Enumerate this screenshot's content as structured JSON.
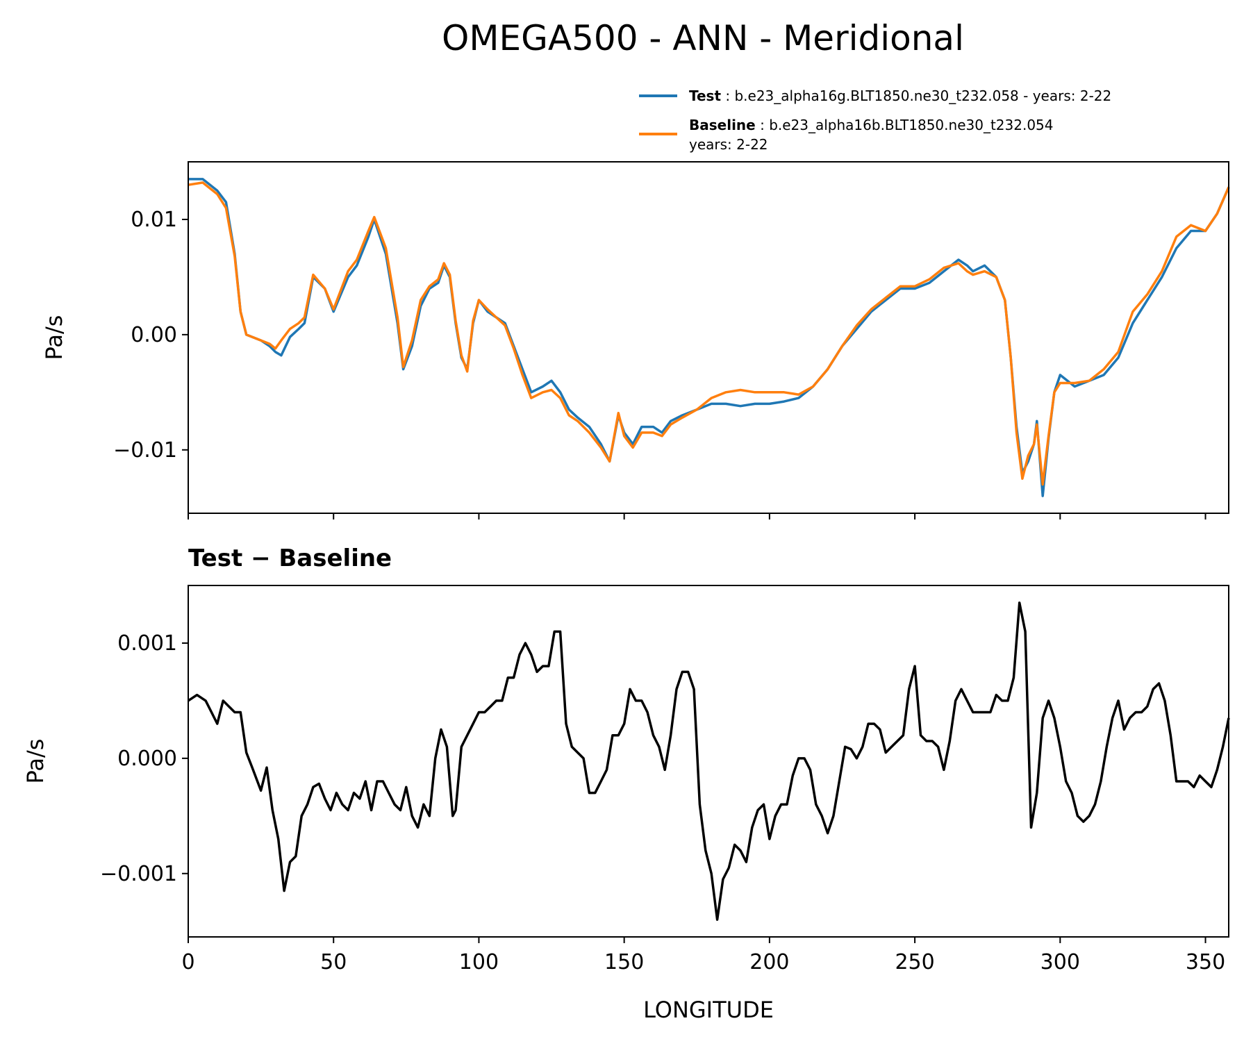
{
  "title": "OMEGA500 - ANN - Meridional",
  "xlabel": "LONGITUDE",
  "legend": {
    "test": {
      "bold": "Test",
      "rest": " : b.e23_alpha16g.BLT1850.ne30_t232.058 - years: 2-22"
    },
    "baseline": {
      "bold": "Baseline",
      "rest1": " : b.e23_alpha16b.BLT1850.ne30_t232.054",
      "rest2": "years: 2-22"
    }
  },
  "colors": {
    "test": "#1f77b4",
    "baseline": "#ff7f0e",
    "diff": "#000000"
  },
  "chart_data": [
    {
      "type": "line",
      "ylabel": "Pa/s",
      "xlim": [
        0,
        358
      ],
      "ylim": [
        -0.0155,
        0.015
      ],
      "yticks": [
        -0.01,
        0.0,
        0.01
      ],
      "ytick_labels": [
        "−0.01",
        "0.00",
        "0.01"
      ],
      "x": [
        0,
        5,
        10,
        13,
        16,
        18,
        20,
        25,
        28,
        30,
        32,
        35,
        38,
        40,
        43,
        47,
        50,
        55,
        58,
        62,
        64,
        68,
        72,
        74,
        77,
        80,
        83,
        86,
        88,
        90,
        92,
        94,
        96,
        98,
        100,
        103,
        106,
        109,
        112,
        115,
        118,
        122,
        125,
        128,
        131,
        134,
        138,
        142,
        145,
        148,
        150,
        153,
        156,
        160,
        163,
        166,
        170,
        175,
        180,
        185,
        190,
        195,
        200,
        205,
        210,
        215,
        220,
        225,
        230,
        235,
        240,
        245,
        250,
        255,
        260,
        265,
        268,
        270,
        274,
        278,
        281,
        283,
        285,
        287,
        289,
        291,
        292,
        294,
        296,
        298,
        300,
        305,
        310,
        315,
        320,
        325,
        330,
        335,
        340,
        345,
        350,
        354,
        358
      ],
      "series": [
        {
          "name": "Test",
          "values": [
            0.0135,
            0.0135,
            0.0125,
            0.0115,
            0.007,
            0.002,
            0.0,
            -0.0005,
            -0.001,
            -0.0015,
            -0.0018,
            -0.0002,
            0.0005,
            0.001,
            0.005,
            0.004,
            0.002,
            0.005,
            0.006,
            0.0085,
            0.01,
            0.007,
            0.001,
            -0.003,
            -0.001,
            0.0025,
            0.004,
            0.0045,
            0.006,
            0.005,
            0.001,
            -0.002,
            -0.003,
            0.001,
            0.003,
            0.002,
            0.0015,
            0.001,
            -0.001,
            -0.003,
            -0.005,
            -0.0045,
            -0.004,
            -0.005,
            -0.0065,
            -0.0072,
            -0.008,
            -0.0095,
            -0.011,
            -0.007,
            -0.0085,
            -0.0095,
            -0.008,
            -0.008,
            -0.0085,
            -0.0075,
            -0.007,
            -0.0065,
            -0.006,
            -0.006,
            -0.0062,
            -0.006,
            -0.006,
            -0.0058,
            -0.0055,
            -0.0045,
            -0.003,
            -0.001,
            0.0005,
            0.002,
            0.003,
            0.004,
            0.004,
            0.0045,
            0.0055,
            0.0065,
            0.006,
            0.0055,
            0.006,
            0.005,
            0.003,
            -0.002,
            -0.008,
            -0.012,
            -0.011,
            -0.0095,
            -0.0075,
            -0.014,
            -0.009,
            -0.005,
            -0.0035,
            -0.0045,
            -0.004,
            -0.0035,
            -0.002,
            0.001,
            0.003,
            0.005,
            0.0075,
            0.009,
            0.009,
            0.0105,
            0.0128
          ]
        },
        {
          "name": "Baseline",
          "values": [
            0.013,
            0.0132,
            0.0122,
            0.011,
            0.0068,
            0.002,
            0.0,
            -0.0005,
            -0.0008,
            -0.0012,
            -0.0005,
            0.0005,
            0.001,
            0.0015,
            0.0052,
            0.004,
            0.0022,
            0.0055,
            0.0065,
            0.009,
            0.0102,
            0.0075,
            0.0015,
            -0.0028,
            -0.0005,
            0.003,
            0.0042,
            0.0048,
            0.0062,
            0.0052,
            0.0012,
            -0.0018,
            -0.0032,
            0.0012,
            0.003,
            0.0022,
            0.0015,
            0.0008,
            -0.0012,
            -0.0035,
            -0.0055,
            -0.005,
            -0.0048,
            -0.0055,
            -0.007,
            -0.0075,
            -0.0085,
            -0.0098,
            -0.011,
            -0.0068,
            -0.0088,
            -0.0098,
            -0.0085,
            -0.0085,
            -0.0088,
            -0.0078,
            -0.0072,
            -0.0065,
            -0.0055,
            -0.005,
            -0.0048,
            -0.005,
            -0.005,
            -0.005,
            -0.0052,
            -0.0045,
            -0.003,
            -0.001,
            0.0008,
            0.0022,
            0.0032,
            0.0042,
            0.0042,
            0.0048,
            0.0058,
            0.0062,
            0.0055,
            0.0052,
            0.0055,
            0.005,
            0.003,
            -0.002,
            -0.0085,
            -0.0125,
            -0.0105,
            -0.0095,
            -0.0078,
            -0.013,
            -0.0088,
            -0.005,
            -0.0042,
            -0.0042,
            -0.004,
            -0.003,
            -0.0015,
            0.002,
            0.0035,
            0.0055,
            0.0085,
            0.0095,
            0.009,
            0.0105,
            0.0128
          ]
        }
      ]
    },
    {
      "type": "line",
      "subtitle": "Test − Baseline",
      "ylabel": "Pa/s",
      "xlim": [
        0,
        358
      ],
      "ylim": [
        -0.00155,
        0.0015
      ],
      "yticks": [
        -0.001,
        0.0,
        0.001
      ],
      "ytick_labels": [
        "−0.001",
        "0.000",
        "0.001"
      ],
      "xticks": [
        0,
        50,
        100,
        150,
        200,
        250,
        300,
        350
      ],
      "xtick_labels": [
        "0",
        "50",
        "100",
        "150",
        "200",
        "250",
        "300",
        "350"
      ],
      "x": [
        0,
        3,
        6,
        8,
        10,
        12,
        14,
        16,
        18,
        20,
        22,
        25,
        27,
        29,
        31,
        33,
        35,
        37,
        39,
        41,
        43,
        45,
        47,
        49,
        51,
        53,
        55,
        57,
        59,
        61,
        63,
        65,
        67,
        69,
        71,
        73,
        75,
        77,
        79,
        81,
        83,
        85,
        87,
        89,
        91,
        92,
        94,
        96,
        98,
        100,
        102,
        104,
        106,
        108,
        110,
        112,
        114,
        116,
        118,
        120,
        122,
        124,
        126,
        128,
        130,
        132,
        134,
        136,
        138,
        140,
        142,
        144,
        146,
        148,
        150,
        152,
        154,
        156,
        158,
        160,
        162,
        164,
        166,
        168,
        170,
        172,
        174,
        176,
        178,
        180,
        182,
        184,
        186,
        188,
        190,
        192,
        194,
        196,
        198,
        200,
        202,
        204,
        206,
        208,
        210,
        212,
        214,
        216,
        218,
        220,
        222,
        224,
        226,
        228,
        230,
        232,
        234,
        236,
        238,
        240,
        242,
        244,
        246,
        248,
        250,
        252,
        254,
        256,
        258,
        260,
        262,
        264,
        266,
        268,
        270,
        272,
        274,
        276,
        278,
        280,
        282,
        284,
        286,
        288,
        290,
        292,
        294,
        296,
        298,
        300,
        302,
        304,
        306,
        308,
        310,
        312,
        314,
        316,
        318,
        320,
        322,
        324,
        326,
        328,
        330,
        332,
        334,
        336,
        338,
        340,
        342,
        344,
        346,
        348,
        350,
        352,
        354,
        356,
        358
      ],
      "series": [
        {
          "name": "Test − Baseline",
          "values": [
            0.0005,
            0.00055,
            0.0005,
            0.0004,
            0.0003,
            0.0005,
            0.00045,
            0.0004,
            0.0004,
            5e-05,
            -8e-05,
            -0.00028,
            -8e-05,
            -0.00045,
            -0.0007,
            -0.00115,
            -0.0009,
            -0.00085,
            -0.0005,
            -0.0004,
            -0.00025,
            -0.00022,
            -0.00035,
            -0.00045,
            -0.0003,
            -0.0004,
            -0.00045,
            -0.0003,
            -0.00035,
            -0.0002,
            -0.00045,
            -0.0002,
            -0.0002,
            -0.0003,
            -0.0004,
            -0.00045,
            -0.00025,
            -0.0005,
            -0.0006,
            -0.0004,
            -0.0005,
            0.0,
            0.00025,
            0.0001,
            -0.0005,
            -0.00045,
            0.0001,
            0.0002,
            0.0003,
            0.0004,
            0.0004,
            0.00045,
            0.0005,
            0.0005,
            0.0007,
            0.0007,
            0.0009,
            0.001,
            0.0009,
            0.00075,
            0.0008,
            0.0008,
            0.0011,
            0.0011,
            0.0003,
            0.0001,
            5e-05,
            0.0,
            -0.0003,
            -0.0003,
            -0.0002,
            -0.0001,
            0.0002,
            0.0002,
            0.0003,
            0.0006,
            0.0005,
            0.0005,
            0.0004,
            0.0002,
            0.0001,
            -0.0001,
            0.0002,
            0.0006,
            0.00075,
            0.00075,
            0.0006,
            -0.0004,
            -0.0008,
            -0.001,
            -0.0014,
            -0.00105,
            -0.00095,
            -0.00075,
            -0.0008,
            -0.0009,
            -0.0006,
            -0.00045,
            -0.0004,
            -0.0007,
            -0.0005,
            -0.0004,
            -0.0004,
            -0.00015,
            0.0,
            0.0,
            -0.0001,
            -0.0004,
            -0.0005,
            -0.00065,
            -0.0005,
            -0.0002,
            0.0001,
            8e-05,
            0.0,
            0.0001,
            0.0003,
            0.0003,
            0.00025,
            5e-05,
            0.0001,
            0.00015,
            0.0002,
            0.0006,
            0.0008,
            0.0002,
            0.00015,
            0.00015,
            0.0001,
            -0.0001,
            0.00015,
            0.0005,
            0.0006,
            0.0005,
            0.0004,
            0.0004,
            0.0004,
            0.0004,
            0.00055,
            0.0005,
            0.0005,
            0.0007,
            0.00135,
            0.0011,
            -0.0006,
            -0.0003,
            0.00035,
            0.0005,
            0.00035,
            0.0001,
            -0.0002,
            -0.0003,
            -0.0005,
            -0.00055,
            -0.0005,
            -0.0004,
            -0.0002,
            0.0001,
            0.00035,
            0.0005,
            0.00025,
            0.00035,
            0.0004,
            0.0004,
            0.00045,
            0.0006,
            0.00065,
            0.0005,
            0.0002,
            -0.0002,
            -0.0002,
            -0.0002,
            -0.00025,
            -0.00015,
            -0.0002,
            -0.00025,
            -0.0001,
            0.0001,
            0.00035
          ]
        }
      ]
    }
  ]
}
